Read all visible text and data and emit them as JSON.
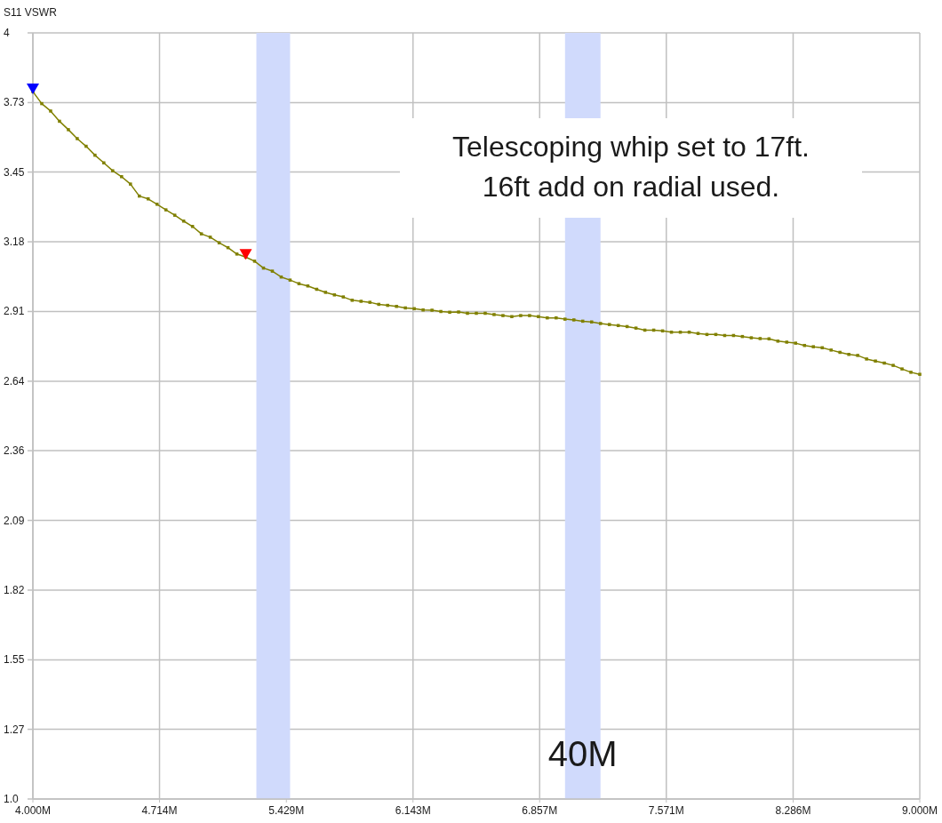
{
  "chart_data": {
    "type": "line",
    "ylabel": "S11 VSWR",
    "annotations": [
      "Telescoping whip set to 17ft.\n16ft add on radial used."
    ],
    "xlim": [
      4,
      9
    ],
    "ylim": [
      1,
      4
    ],
    "xticks": [
      {
        "value": 4,
        "label": "4.000M"
      },
      {
        "value": 4.714,
        "label": "4.714M"
      },
      {
        "value": 5.429,
        "label": "5.429M"
      },
      {
        "value": 6.143,
        "label": "6.143M"
      },
      {
        "value": 6.857,
        "label": "6.857M"
      },
      {
        "value": 7.571,
        "label": "7.571M"
      },
      {
        "value": 8.286,
        "label": "8.286M"
      },
      {
        "value": 9,
        "label": "9.000M"
      }
    ],
    "yticks": [
      {
        "value": 1,
        "label": "1.0"
      },
      {
        "value": 1.273,
        "label": "1.27"
      },
      {
        "value": 1.545,
        "label": "1.55"
      },
      {
        "value": 1.818,
        "label": "1.82"
      },
      {
        "value": 2.091,
        "label": "2.09"
      },
      {
        "value": 2.364,
        "label": "2.36"
      },
      {
        "value": 2.636,
        "label": "2.64"
      },
      {
        "value": 2.909,
        "label": "2.91"
      },
      {
        "value": 3.182,
        "label": "3.18"
      },
      {
        "value": 3.455,
        "label": "3.45"
      },
      {
        "value": 3.727,
        "label": "3.73"
      },
      4
    ],
    "grid": true,
    "bands": [
      {
        "axis": "x",
        "from": 5.26,
        "to": 5.45,
        "color": "#d0dafc"
      },
      {
        "axis": "x",
        "from": 7.0,
        "to": 7.2,
        "label": "40M",
        "color": "#d0dafc"
      }
    ],
    "series": [
      {
        "type": "line",
        "color": "#808000",
        "marker": "square",
        "x": [
          4.0,
          4.05,
          4.1,
          4.15,
          4.2,
          4.25,
          4.3,
          4.35,
          4.4,
          4.45,
          4.5,
          4.55,
          4.6,
          4.65,
          4.7,
          4.75,
          4.8,
          4.85,
          4.9,
          4.95,
          5.0,
          5.05,
          5.1,
          5.15,
          5.2,
          5.25,
          5.3,
          5.35,
          5.4,
          5.45,
          5.5,
          5.55,
          5.6,
          5.65,
          5.7,
          5.75,
          5.8,
          5.85,
          5.9,
          5.95,
          6.0,
          6.05,
          6.1,
          6.15,
          6.2,
          6.25,
          6.3,
          6.35,
          6.4,
          6.45,
          6.5,
          6.55,
          6.6,
          6.65,
          6.7,
          6.75,
          6.8,
          6.85,
          6.9,
          6.95,
          7.0,
          7.05,
          7.1,
          7.15,
          7.2,
          7.25,
          7.3,
          7.35,
          7.4,
          7.45,
          7.5,
          7.55,
          7.6,
          7.65,
          7.7,
          7.75,
          7.8,
          7.85,
          7.9,
          7.95,
          8.0,
          8.05,
          8.1,
          8.15,
          8.2,
          8.25,
          8.3,
          8.35,
          8.4,
          8.45,
          8.5,
          8.55,
          8.6,
          8.65,
          8.7,
          8.75,
          8.8,
          8.85,
          8.9,
          8.95,
          9.0
        ],
        "values": [
          3.77,
          3.723,
          3.694,
          3.654,
          3.621,
          3.586,
          3.556,
          3.521,
          3.491,
          3.46,
          3.437,
          3.408,
          3.361,
          3.35,
          3.329,
          3.307,
          3.286,
          3.263,
          3.242,
          3.213,
          3.2,
          3.178,
          3.159,
          3.134,
          3.122,
          3.106,
          3.079,
          3.067,
          3.044,
          3.032,
          3.018,
          3.009,
          2.996,
          2.984,
          2.974,
          2.966,
          2.953,
          2.949,
          2.945,
          2.937,
          2.933,
          2.929,
          2.923,
          2.92,
          2.915,
          2.914,
          2.909,
          2.906,
          2.907,
          2.902,
          2.902,
          2.902,
          2.897,
          2.893,
          2.889,
          2.893,
          2.893,
          2.889,
          2.884,
          2.884,
          2.879,
          2.876,
          2.871,
          2.868,
          2.862,
          2.858,
          2.854,
          2.85,
          2.844,
          2.836,
          2.836,
          2.833,
          2.828,
          2.828,
          2.828,
          2.823,
          2.819,
          2.819,
          2.815,
          2.815,
          2.811,
          2.806,
          2.803,
          2.802,
          2.793,
          2.789,
          2.785,
          2.776,
          2.771,
          2.767,
          2.758,
          2.749,
          2.741,
          2.737,
          2.723,
          2.715,
          2.707,
          2.698,
          2.684,
          2.671,
          2.663
        ]
      },
      {
        "type": "scatter",
        "marker": "triangle",
        "colors": [
          "#0000ff",
          "#ff0000"
        ],
        "x": [
          4.0,
          5.2
        ],
        "values": [
          3.77,
          3.122
        ]
      }
    ]
  }
}
